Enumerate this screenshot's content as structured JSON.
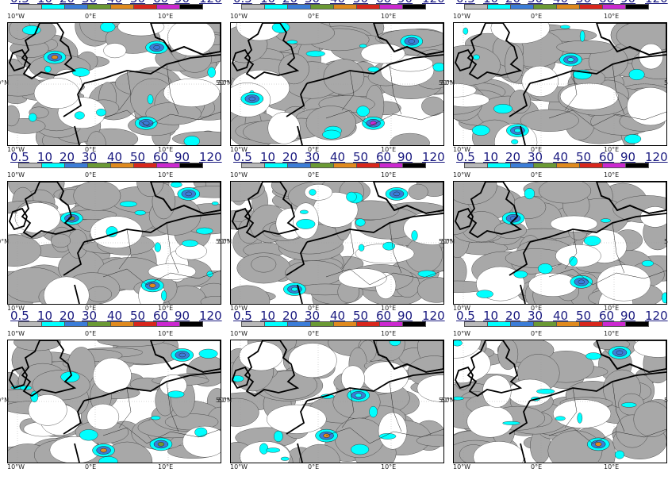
{
  "scale": {
    "labels": [
      "0.5",
      "10",
      "20",
      "30",
      "40",
      "50",
      "60",
      "90",
      "120"
    ],
    "colors": [
      "#b9b9b9",
      "#00ffff",
      "#3b7dd8",
      "#6b9a34",
      "#e08a1e",
      "#d9261c",
      "#cc28d0",
      "#000000"
    ]
  },
  "axes": {
    "lon_labels": [
      "10°W",
      "0°E",
      "10°E"
    ],
    "lat_label": "50°N"
  },
  "colors": {
    "land_gray": "#a8a8a8",
    "cyan": "#00ffff",
    "blue": "#3b7dd8",
    "green": "#6b9a34",
    "orange": "#e08a1e",
    "red": "#d9261c",
    "magenta": "#cc28d0",
    "coast": "#000000"
  },
  "panels": [
    {
      "row": 0,
      "col": 0,
      "cores": [
        [
          "orange",
          0.22,
          0.28
        ],
        [
          "blue",
          0.7,
          0.2
        ],
        [
          "blue",
          0.65,
          0.82
        ]
      ]
    },
    {
      "row": 0,
      "col": 1,
      "cores": [
        [
          "blue",
          0.1,
          0.62
        ],
        [
          "magenta",
          0.67,
          0.82
        ],
        [
          "blue",
          0.85,
          0.15
        ]
      ]
    },
    {
      "row": 0,
      "col": 2,
      "cores": [
        [
          "cyan",
          0.3,
          0.88
        ],
        [
          "cyan",
          0.55,
          0.3
        ]
      ]
    },
    {
      "row": 1,
      "col": 0,
      "cores": [
        [
          "green",
          0.3,
          0.3
        ],
        [
          "orange",
          0.68,
          0.85
        ],
        [
          "blue",
          0.85,
          0.1
        ]
      ]
    },
    {
      "row": 1,
      "col": 1,
      "cores": [
        [
          "cyan",
          0.3,
          0.88
        ],
        [
          "blue",
          0.78,
          0.1
        ]
      ]
    },
    {
      "row": 1,
      "col": 2,
      "cores": [
        [
          "blue",
          0.28,
          0.3
        ],
        [
          "blue",
          0.6,
          0.82
        ]
      ]
    },
    {
      "row": 2,
      "col": 0,
      "cores": [
        [
          "orange",
          0.45,
          0.9
        ],
        [
          "green",
          0.72,
          0.85
        ],
        [
          "blue",
          0.82,
          0.12
        ]
      ]
    },
    {
      "row": 2,
      "col": 1,
      "cores": [
        [
          "orange",
          0.45,
          0.78
        ],
        [
          "cyan",
          0.6,
          0.45
        ]
      ]
    },
    {
      "row": 2,
      "col": 2,
      "cores": [
        [
          "orange",
          0.68,
          0.85
        ],
        [
          "blue",
          0.78,
          0.1
        ]
      ]
    }
  ]
}
